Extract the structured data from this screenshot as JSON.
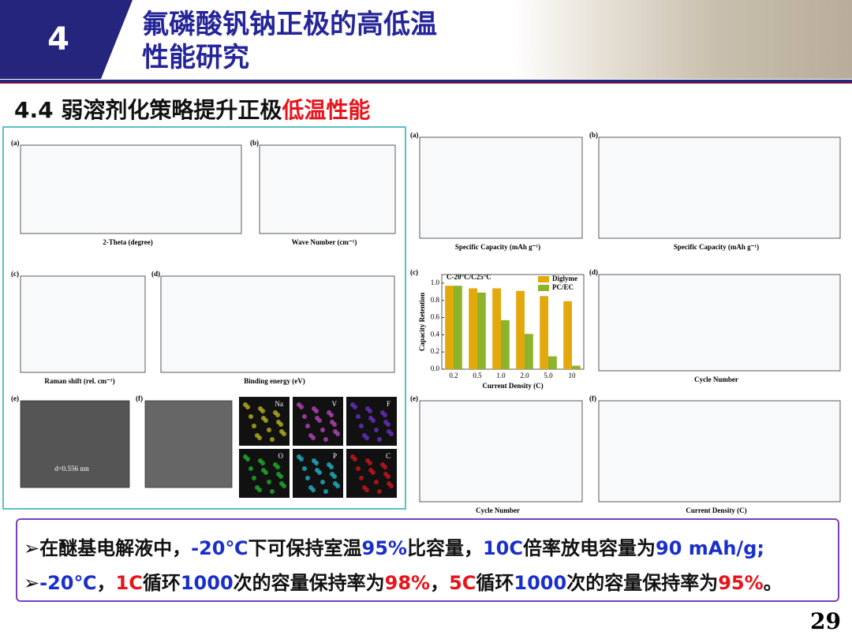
{
  "header": {
    "number": "4",
    "title_lines": [
      "氟磷酸钒钠正极的高低温",
      "性能研究"
    ]
  },
  "subtitle": [
    {
      "text": "4.4 弱溶剂化策略提升正极",
      "color": "#111111"
    },
    {
      "text": "低温性能",
      "color": "#e8141c"
    }
  ],
  "left_panels": [
    {
      "label": "(a)",
      "xlabel": "2-Theta (degree)"
    },
    {
      "label": "(b)",
      "xlabel": "Wave Number (cm⁻¹)"
    },
    {
      "label": "(c)",
      "xlabel": "Raman shift (rel. cm⁻¹)"
    },
    {
      "label": "(d)",
      "xlabel": "Binding energy (eV)"
    },
    {
      "label": "(e)",
      "note": "d=0.556 nm"
    },
    {
      "label": "(f)"
    }
  ],
  "maps": [
    {
      "element": "Na",
      "color": "#b9b21f"
    },
    {
      "element": "V",
      "color": "#b444b8"
    },
    {
      "element": "F",
      "color": "#6a2fc0"
    },
    {
      "element": "O",
      "color": "#1fae2b"
    },
    {
      "element": "P",
      "color": "#1fb3c4"
    },
    {
      "element": "C",
      "color": "#c8161c"
    }
  ],
  "right_panels": [
    {
      "label": "(a)",
      "xlabel": "Specific Capacity (mAh g⁻¹)"
    },
    {
      "label": "(b)",
      "xlabel": "Specific Capacity (mAh g⁻¹)"
    },
    {
      "label": "(d)",
      "xlabel": "Cycle Number"
    },
    {
      "label": "(e)",
      "xlabel": "Cycle Number"
    },
    {
      "label": "(f)",
      "xlabel": "Current Density (C)"
    }
  ],
  "chart_c": {
    "type": "bar",
    "label": "(c)",
    "annotation": "C-20°C/C25°C",
    "categories": [
      "0.2",
      "0.5",
      "1.0",
      "2.0",
      "5.0",
      "10"
    ],
    "series": [
      {
        "name": "Diglyme",
        "color": "#e2a80c",
        "values": [
          0.97,
          0.94,
          0.94,
          0.91,
          0.85,
          0.79
        ]
      },
      {
        "name": "PC/EC",
        "color": "#8db32a",
        "values": [
          0.97,
          0.89,
          0.57,
          0.41,
          0.15,
          0.04
        ]
      }
    ],
    "xlabel": "Current Density (C)",
    "ylabel": "Capacity Retention",
    "ylim": [
      0,
      1.1
    ],
    "yticks": [
      {
        "value": 0,
        "label": "0.0"
      },
      0.2,
      0.4,
      0.6,
      0.8,
      {
        "value": 1,
        "label": "1.0"
      }
    ],
    "legend": "top-right"
  },
  "bullets": [
    [
      {
        "text": "➢在醚基电解液中，",
        "color": "#111111"
      },
      {
        "text": "-20℃",
        "color": "#1a2fc8"
      },
      {
        "text": "下可保持室温",
        "color": "#111111"
      },
      {
        "text": "95%",
        "color": "#1a2fc8"
      },
      {
        "text": "比容量，",
        "color": "#111111"
      },
      {
        "text": "10C",
        "color": "#1a2fc8"
      },
      {
        "text": "倍率放电容量为",
        "color": "#111111"
      },
      {
        "text": "90 mAh/g;",
        "color": "#1a2fc8"
      }
    ],
    [
      {
        "text": "➢",
        "color": "#111111"
      },
      {
        "text": "-20℃",
        "color": "#1a2fc8"
      },
      {
        "text": "，",
        "color": "#111111"
      },
      {
        "text": "1C",
        "color": "#e8141c"
      },
      {
        "text": "循环",
        "color": "#111111"
      },
      {
        "text": "1000",
        "color": "#1a2fc8"
      },
      {
        "text": "次的容量保持率为",
        "color": "#111111"
      },
      {
        "text": "98%",
        "color": "#e8141c"
      },
      {
        "text": "，",
        "color": "#111111"
      },
      {
        "text": "5C",
        "color": "#e8141c"
      },
      {
        "text": "循环",
        "color": "#111111"
      },
      {
        "text": "1000",
        "color": "#1a2fc8"
      },
      {
        "text": "次的容量保持率为",
        "color": "#111111"
      },
      {
        "text": "95%",
        "color": "#e8141c"
      },
      {
        "text": "。",
        "color": "#111111"
      }
    ]
  ],
  "page_number": "29"
}
